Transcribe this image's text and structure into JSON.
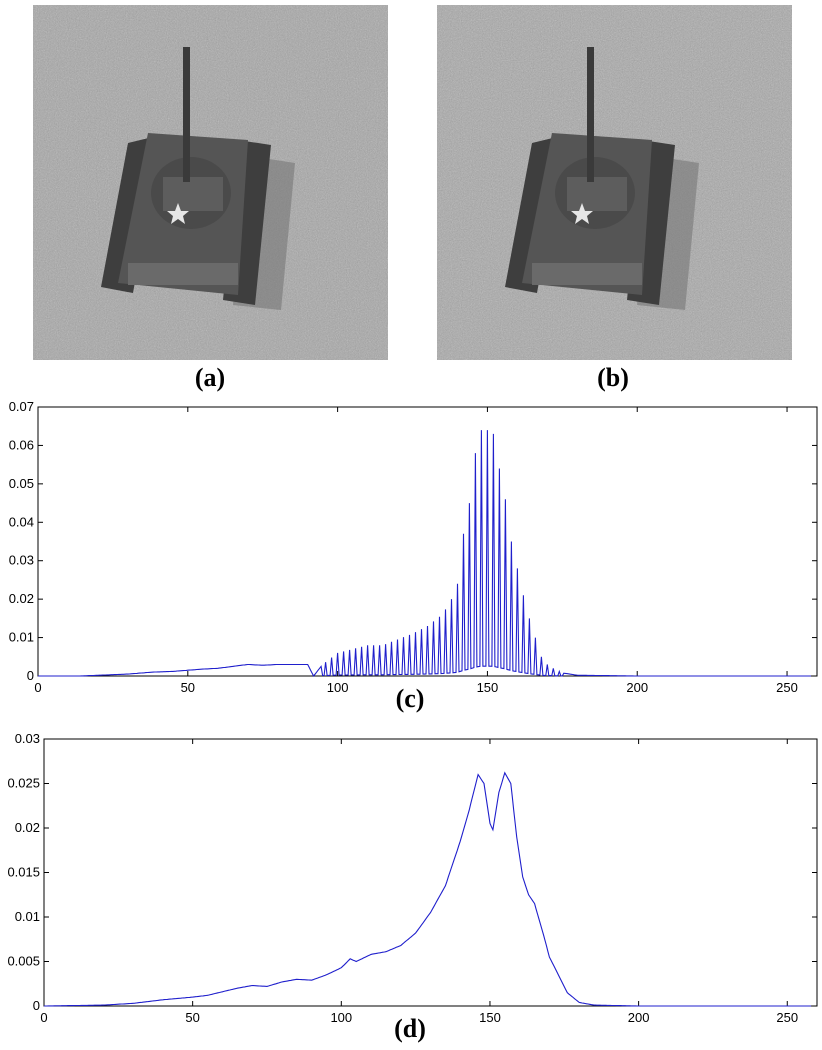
{
  "panels": {
    "a": {
      "caption": "(a)"
    },
    "b": {
      "caption": "(b)"
    },
    "c": {
      "caption": "(c)"
    },
    "d": {
      "caption": "(d)"
    }
  },
  "colors": {
    "line": "#1f1fcc",
    "axis": "#000000",
    "ground": "#a9a9a9",
    "tank": "#4a4a4a"
  },
  "chart_data": [
    {
      "type": "line",
      "panel": "c",
      "xlim": [
        0,
        260
      ],
      "ylim": [
        0,
        0.07
      ],
      "xticks": [
        "0",
        "50",
        "100",
        "150",
        "200",
        "250"
      ],
      "yticks": [
        "0",
        "0.01",
        "0.02",
        "0.03",
        "0.04",
        "0.05",
        "0.06",
        "0.07"
      ],
      "x": [
        0,
        14,
        30,
        38,
        45,
        50,
        55,
        60,
        65,
        70,
        75,
        80,
        85,
        90,
        92,
        95,
        100,
        105,
        110,
        115,
        120,
        125,
        130,
        135,
        138,
        140,
        142,
        144,
        146,
        148,
        150,
        152,
        154,
        156,
        158,
        160,
        162,
        164,
        166,
        168,
        170,
        172,
        175,
        180,
        200,
        258
      ],
      "y": [
        0,
        0,
        0.0005,
        0.001,
        0.0012,
        0.0015,
        0.0018,
        0.002,
        0.0025,
        0.003,
        0.0028,
        0.003,
        0.003,
        0.003,
        0,
        0.003,
        0.006,
        0.007,
        0.008,
        0.008,
        0.0095,
        0.011,
        0.013,
        0.016,
        0.02,
        0.024,
        0.037,
        0.045,
        0.058,
        0.064,
        0.064,
        0.063,
        0.054,
        0.046,
        0.035,
        0.028,
        0.021,
        0.015,
        0.01,
        0.005,
        0.003,
        0.002,
        0.0008,
        0.0002,
        0,
        0
      ],
      "osc_from": 95,
      "osc_to": 175,
      "osc_period": 2
    },
    {
      "type": "line",
      "panel": "d",
      "xlim": [
        0,
        260
      ],
      "ylim": [
        0,
        0.03
      ],
      "xticks": [
        "0",
        "50",
        "100",
        "150",
        "200",
        "250"
      ],
      "yticks": [
        "0",
        "0.005",
        "0.01",
        "0.015",
        "0.02",
        "0.025",
        "0.03"
      ],
      "x": [
        0,
        20,
        30,
        40,
        50,
        55,
        60,
        65,
        70,
        75,
        80,
        85,
        90,
        95,
        100,
        103,
        105,
        110,
        115,
        120,
        125,
        130,
        135,
        140,
        143,
        146,
        148,
        150,
        151,
        153,
        155,
        157,
        159,
        161,
        163,
        165,
        168,
        170,
        173,
        176,
        180,
        185,
        200,
        258
      ],
      "y": [
        0,
        0.0001,
        0.0003,
        0.0007,
        0.001,
        0.0012,
        0.0016,
        0.002,
        0.0023,
        0.0022,
        0.0027,
        0.003,
        0.0029,
        0.0035,
        0.0043,
        0.0053,
        0.005,
        0.0058,
        0.0061,
        0.0068,
        0.0082,
        0.0105,
        0.0135,
        0.0185,
        0.022,
        0.026,
        0.025,
        0.0205,
        0.0198,
        0.024,
        0.0262,
        0.025,
        0.019,
        0.0145,
        0.0125,
        0.0115,
        0.008,
        0.0055,
        0.0035,
        0.0015,
        0.0004,
        0.0001,
        0,
        0
      ]
    }
  ]
}
